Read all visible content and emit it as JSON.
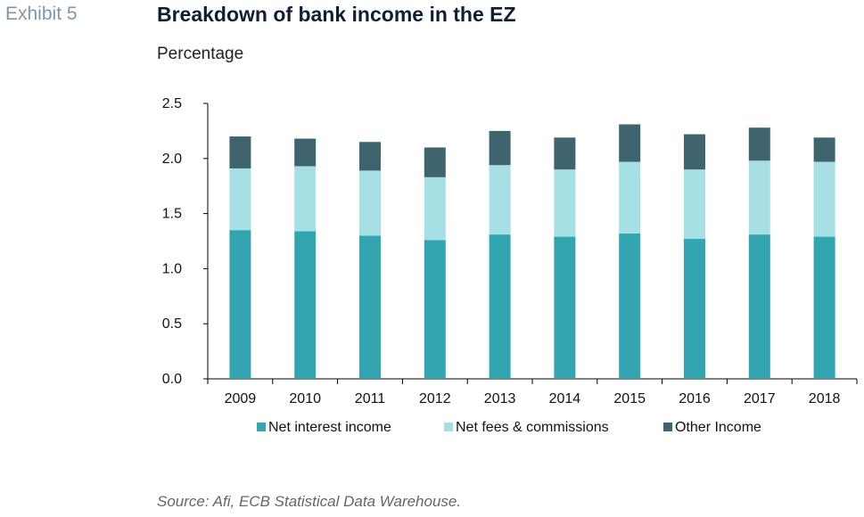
{
  "header": {
    "exhibit": "Exhibit 5",
    "title": "Breakdown of bank income in the EZ",
    "subtitle": "Percentage"
  },
  "source": "Source: Afi, ECB Statistical Data Warehouse.",
  "colors": {
    "net_interest_income": "#33a5b0",
    "net_fees_commissions": "#a6e0e5",
    "other_income": "#3f646d"
  },
  "chart_data": {
    "type": "bar",
    "stacked": true,
    "categories": [
      "2009",
      "2010",
      "2011",
      "2012",
      "2013",
      "2014",
      "2015",
      "2016",
      "2017",
      "2018"
    ],
    "series": [
      {
        "name": "Net interest income",
        "color": "#33a5b0",
        "values": [
          1.35,
          1.34,
          1.3,
          1.26,
          1.31,
          1.29,
          1.32,
          1.27,
          1.31,
          1.29
        ]
      },
      {
        "name": "Net fees & commissions",
        "color": "#a6e0e5",
        "values": [
          0.56,
          0.59,
          0.59,
          0.57,
          0.63,
          0.61,
          0.65,
          0.63,
          0.67,
          0.68
        ]
      },
      {
        "name": "Other Income",
        "color": "#3f646d",
        "values": [
          0.29,
          0.25,
          0.26,
          0.27,
          0.31,
          0.29,
          0.34,
          0.32,
          0.3,
          0.22
        ]
      }
    ],
    "yticks": [
      "0.0",
      "0.5",
      "1.0",
      "1.5",
      "2.0",
      "2.5"
    ],
    "ylim": [
      0,
      2.5
    ],
    "legend_position": "bottom",
    "grid": false
  }
}
